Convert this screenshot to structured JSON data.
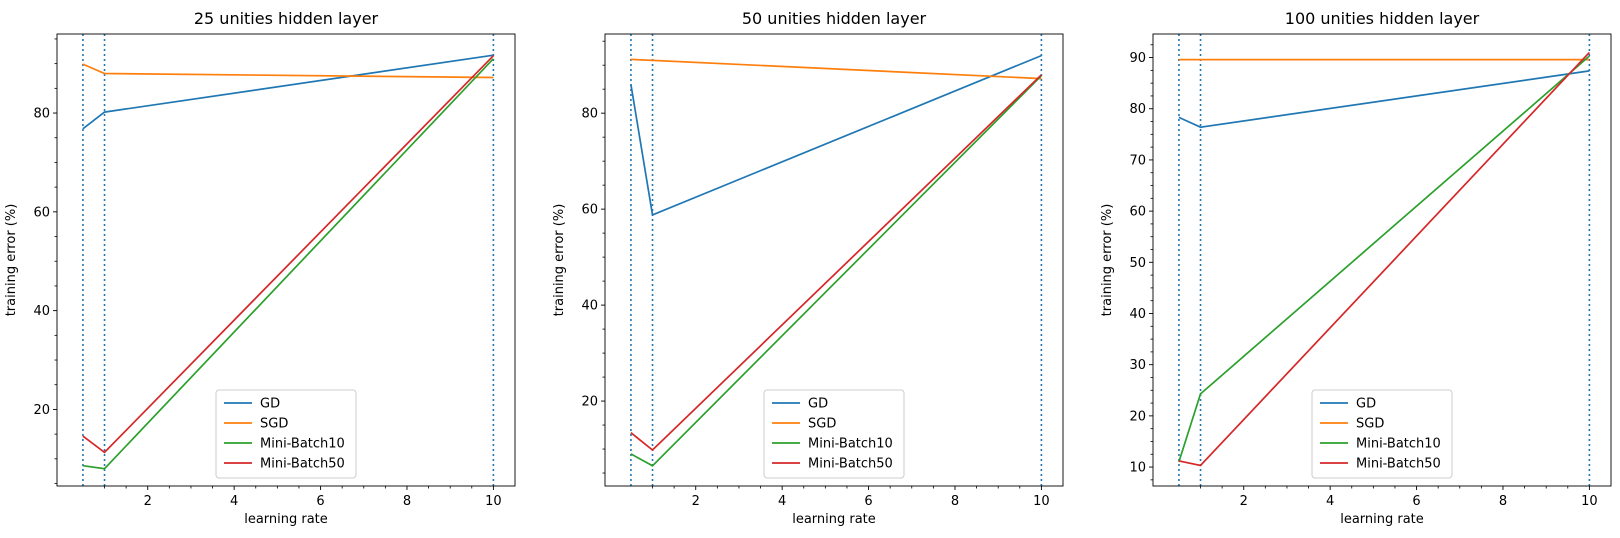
{
  "chart_data": [
    {
      "type": "line",
      "title": "25 unities hidden layer",
      "xlabel": "learning rate",
      "ylabel": "training error (%)",
      "x": [
        0.5,
        1,
        10
      ],
      "xlim": [
        -0.1,
        10.5
      ],
      "ylim": [
        4.5,
        96
      ],
      "xticks": [
        2,
        4,
        6,
        8,
        10
      ],
      "yticks": [
        20,
        40,
        60,
        80
      ],
      "series": [
        {
          "name": "GD",
          "values": [
            76.8,
            80.2,
            91.7
          ],
          "color": "#1f77b4"
        },
        {
          "name": "SGD",
          "values": [
            89.9,
            88.0,
            87.2
          ],
          "color": "#ff7f0e"
        },
        {
          "name": "Mini-Batch10",
          "values": [
            8.6,
            8.0,
            91.0
          ],
          "color": "#2ca02c"
        },
        {
          "name": "Mini-Batch50",
          "values": [
            14.6,
            11.3,
            91.6
          ],
          "color": "#d62728"
        }
      ],
      "vlines": [
        0.5,
        1,
        10
      ],
      "vline_color": "#1f77b4",
      "legend": "lower-center",
      "grid": false
    },
    {
      "type": "line",
      "title": "50 unities hidden layer",
      "xlabel": "learning rate",
      "ylabel": "training error (%)",
      "x": [
        0.5,
        1,
        10
      ],
      "xlim": [
        -0.1,
        10.5
      ],
      "ylim": [
        2.3,
        96.5
      ],
      "xticks": [
        2,
        4,
        6,
        8,
        10
      ],
      "yticks": [
        20,
        40,
        60,
        80
      ],
      "series": [
        {
          "name": "GD",
          "values": [
            86.0,
            58.8,
            92.0
          ],
          "color": "#1f77b4"
        },
        {
          "name": "SGD",
          "values": [
            91.2,
            91.0,
            87.2
          ],
          "color": "#ff7f0e"
        },
        {
          "name": "Mini-Batch10",
          "values": [
            9.0,
            6.5,
            87.8
          ],
          "color": "#2ca02c"
        },
        {
          "name": "Mini-Batch50",
          "values": [
            13.4,
            9.8,
            88.0
          ],
          "color": "#d62728"
        }
      ],
      "vlines": [
        0.5,
        1,
        10
      ],
      "vline_color": "#1f77b4",
      "legend": "lower-center",
      "grid": false
    },
    {
      "type": "line",
      "title": "100 unities hidden layer",
      "xlabel": "learning rate",
      "ylabel": "training error (%)",
      "x": [
        0.5,
        1,
        10
      ],
      "xlim": [
        -0.1,
        10.5
      ],
      "ylim": [
        6.3,
        94.6
      ],
      "xticks": [
        2,
        4,
        6,
        8,
        10
      ],
      "yticks": [
        10,
        20,
        30,
        40,
        50,
        60,
        70,
        80,
        90
      ],
      "series": [
        {
          "name": "GD",
          "values": [
            78.3,
            76.4,
            87.4
          ],
          "color": "#1f77b4"
        },
        {
          "name": "SGD",
          "values": [
            89.6,
            89.6,
            89.6
          ],
          "color": "#ff7f0e"
        },
        {
          "name": "Mini-Batch10",
          "values": [
            11.0,
            24.3,
            90.3
          ],
          "color": "#2ca02c"
        },
        {
          "name": "Mini-Batch50",
          "values": [
            11.2,
            10.3,
            91.0
          ],
          "color": "#d62728"
        }
      ],
      "vlines": [
        0.5,
        1,
        10
      ],
      "vline_color": "#1f77b4",
      "legend": "lower-center",
      "grid": false
    }
  ]
}
